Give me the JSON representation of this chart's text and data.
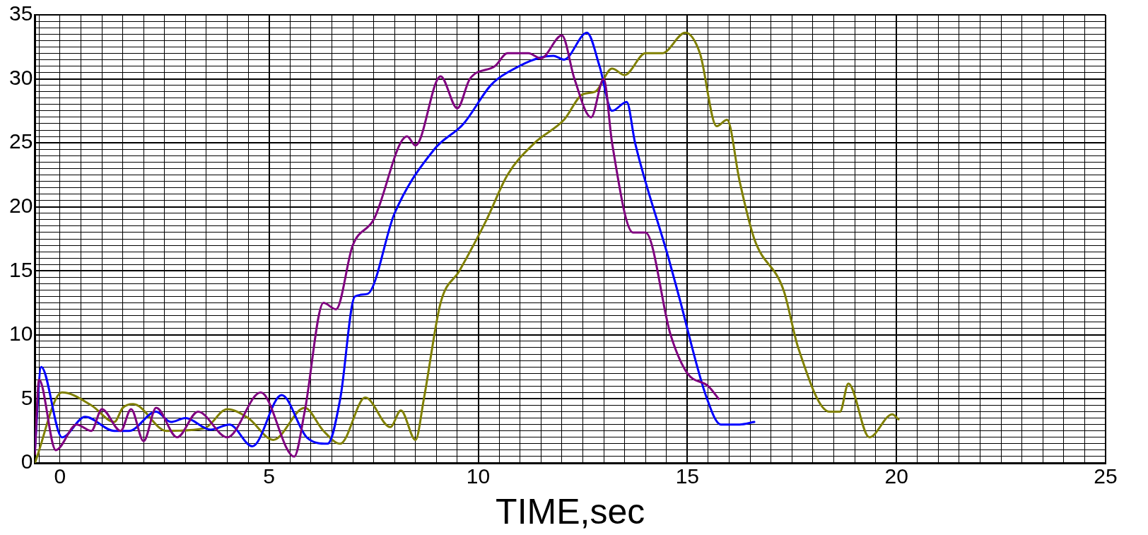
{
  "chart_data": {
    "type": "line",
    "xlabel": "TIME,sec",
    "grid": true,
    "legend": false,
    "marker": "none",
    "line_style": "solid",
    "xlim": [
      -0.6,
      25
    ],
    "ylim": [
      0,
      35
    ],
    "xticks": [
      {
        "value": -0.5,
        "label": null
      },
      0,
      {
        "value": 0.5,
        "label": null
      },
      {
        "value": 1,
        "label": null
      },
      {
        "value": 1.5,
        "label": null
      },
      {
        "value": 2,
        "label": null
      },
      {
        "value": 2.5,
        "label": null
      },
      {
        "value": 3,
        "label": null
      },
      {
        "value": 3.5,
        "label": null
      },
      {
        "value": 4,
        "label": null
      },
      {
        "value": 4.5,
        "label": null
      },
      5,
      {
        "value": 5.5,
        "label": null
      },
      {
        "value": 6,
        "label": null
      },
      {
        "value": 6.5,
        "label": null
      },
      {
        "value": 7,
        "label": null
      },
      {
        "value": 7.5,
        "label": null
      },
      {
        "value": 8,
        "label": null
      },
      {
        "value": 8.5,
        "label": null
      },
      {
        "value": 9,
        "label": null
      },
      {
        "value": 9.5,
        "label": null
      },
      10,
      {
        "value": 10.5,
        "label": null
      },
      {
        "value": 11,
        "label": null
      },
      {
        "value": 11.5,
        "label": null
      },
      {
        "value": 12,
        "label": null
      },
      {
        "value": 12.5,
        "label": null
      },
      {
        "value": 13,
        "label": null
      },
      {
        "value": 13.5,
        "label": null
      },
      {
        "value": 14,
        "label": null
      },
      {
        "value": 14.5,
        "label": null
      },
      15,
      {
        "value": 15.5,
        "label": null
      },
      {
        "value": 16,
        "label": null
      },
      {
        "value": 16.5,
        "label": null
      },
      {
        "value": 17,
        "label": null
      },
      {
        "value": 17.5,
        "label": null
      },
      {
        "value": 18,
        "label": null
      },
      {
        "value": 18.5,
        "label": null
      },
      {
        "value": 19,
        "label": null
      },
      {
        "value": 19.5,
        "label": null
      },
      20,
      {
        "value": 20.5,
        "label": null
      },
      {
        "value": 21,
        "label": null
      },
      {
        "value": 21.5,
        "label": null
      },
      {
        "value": 22,
        "label": null
      },
      {
        "value": 22.5,
        "label": null
      },
      {
        "value": 23,
        "label": null
      },
      {
        "value": 23.5,
        "label": null
      },
      {
        "value": 24,
        "label": null
      },
      {
        "value": 24.5,
        "label": null
      },
      25
    ],
    "yticks": [
      0,
      {
        "value": 0.5,
        "label": null
      },
      {
        "value": 1,
        "label": null
      },
      {
        "value": 1.5,
        "label": null
      },
      {
        "value": 2,
        "label": null
      },
      {
        "value": 2.5,
        "label": null
      },
      {
        "value": 3,
        "label": null
      },
      {
        "value": 3.5,
        "label": null
      },
      {
        "value": 4,
        "label": null
      },
      {
        "value": 4.5,
        "label": null
      },
      5,
      {
        "value": 5.5,
        "label": null
      },
      {
        "value": 6,
        "label": null
      },
      {
        "value": 6.5,
        "label": null
      },
      {
        "value": 7,
        "label": null
      },
      {
        "value": 7.5,
        "label": null
      },
      {
        "value": 8,
        "label": null
      },
      {
        "value": 8.5,
        "label": null
      },
      {
        "value": 9,
        "label": null
      },
      {
        "value": 9.5,
        "label": null
      },
      10,
      {
        "value": 10.5,
        "label": null
      },
      {
        "value": 11,
        "label": null
      },
      {
        "value": 11.5,
        "label": null
      },
      {
        "value": 12,
        "label": null
      },
      {
        "value": 12.5,
        "label": null
      },
      {
        "value": 13,
        "label": null
      },
      {
        "value": 13.5,
        "label": null
      },
      {
        "value": 14,
        "label": null
      },
      {
        "value": 14.5,
        "label": null
      },
      15,
      {
        "value": 15.5,
        "label": null
      },
      {
        "value": 16,
        "label": null
      },
      {
        "value": 16.5,
        "label": null
      },
      {
        "value": 17,
        "label": null
      },
      {
        "value": 17.5,
        "label": null
      },
      {
        "value": 18,
        "label": null
      },
      {
        "value": 18.5,
        "label": null
      },
      {
        "value": 19,
        "label": null
      },
      {
        "value": 19.5,
        "label": null
      },
      20,
      {
        "value": 20.5,
        "label": null
      },
      {
        "value": 21,
        "label": null
      },
      {
        "value": 21.5,
        "label": null
      },
      {
        "value": 22,
        "label": null
      },
      {
        "value": 22.5,
        "label": null
      },
      {
        "value": 23,
        "label": null
      },
      {
        "value": 23.5,
        "label": null
      },
      {
        "value": 24,
        "label": null
      },
      {
        "value": 24.5,
        "label": null
      },
      25,
      {
        "value": 25.5,
        "label": null
      },
      {
        "value": 26,
        "label": null
      },
      {
        "value": 26.5,
        "label": null
      },
      {
        "value": 27,
        "label": null
      },
      {
        "value": 27.5,
        "label": null
      },
      {
        "value": 28,
        "label": null
      },
      {
        "value": 28.5,
        "label": null
      },
      {
        "value": 29,
        "label": null
      },
      {
        "value": 29.5,
        "label": null
      },
      30,
      {
        "value": 30.5,
        "label": null
      },
      {
        "value": 31,
        "label": null
      },
      {
        "value": 31.5,
        "label": null
      },
      {
        "value": 32,
        "label": null
      },
      {
        "value": 32.5,
        "label": null
      },
      {
        "value": 33,
        "label": null
      },
      {
        "value": 33.5,
        "label": null
      },
      {
        "value": 34,
        "label": null
      },
      {
        "value": 34.5,
        "label": null
      },
      35
    ],
    "series": [
      {
        "color": "#800080",
        "x": [
          -0.6,
          -0.5,
          -0.1,
          0.4,
          0.75,
          1.0,
          1.45,
          1.7,
          2.0,
          2.3,
          2.8,
          3.3,
          4.0,
          4.8,
          5.6,
          5.85,
          6.3,
          6.6,
          7.0,
          7.5,
          8.3,
          8.5,
          9.1,
          9.5,
          9.8,
          10.4,
          10.7,
          11.2,
          11.5,
          12.0,
          12.3,
          12.7,
          13.0,
          13.2,
          13.7,
          14.0,
          14.6,
          15.0,
          15.5,
          15.75
        ],
        "values": [
          0.7,
          6.5,
          1,
          3,
          2.5,
          4.2,
          2.5,
          4.2,
          1.7,
          4.3,
          2,
          4,
          2,
          5.5,
          0.5,
          4,
          12.5,
          12,
          17,
          19,
          25.5,
          24.8,
          30.2,
          27.7,
          30,
          31,
          32,
          32,
          31.6,
          33.4,
          30,
          27,
          30,
          25,
          18,
          18,
          10,
          7,
          6,
          5
        ]
      },
      {
        "color": "#0000ff",
        "x": [
          -0.6,
          -0.45,
          0.05,
          0.6,
          1.3,
          1.65,
          2.3,
          2.65,
          3.0,
          3.6,
          4.05,
          4.6,
          5.3,
          5.9,
          6.4,
          6.7,
          7.05,
          7.35,
          8.0,
          8.95,
          9.65,
          10.3,
          10.7,
          11.8,
          12.05,
          12.6,
          12.9,
          13.2,
          13.55,
          13.75,
          14.55,
          14.8,
          15.45,
          15.8,
          16.25,
          16.6
        ],
        "values": [
          1,
          7.5,
          2,
          3.6,
          2.5,
          2.5,
          4,
          3.2,
          3.5,
          2.6,
          3,
          1.3,
          5.3,
          2,
          1.5,
          5,
          13,
          13.2,
          19.5,
          24.5,
          26.5,
          29.5,
          30.5,
          31.8,
          31.5,
          33.6,
          31,
          27.5,
          28.2,
          25,
          16,
          13,
          5.2,
          3,
          3,
          3.2
        ]
      },
      {
        "color": "#808000",
        "x": [
          -0.6,
          0.05,
          0.75,
          1.3,
          1.5,
          1.75,
          2.55,
          3.45,
          4.0,
          4.5,
          5.1,
          5.85,
          6.3,
          6.7,
          7.3,
          7.9,
          8.15,
          8.5,
          8.7,
          9.1,
          9.55,
          10.2,
          10.7,
          11.35,
          12.05,
          12.5,
          12.8,
          13.2,
          13.5,
          14.0,
          14.4,
          14.95,
          15.3,
          15.7,
          15.95,
          16.25,
          16.6,
          17.3,
          17.65,
          18.4,
          18.65,
          18.85,
          19.35,
          19.9,
          20.05
        ],
        "values": [
          0,
          5.5,
          4.5,
          3.2,
          4.3,
          4.6,
          2.5,
          2.7,
          4.2,
          3.5,
          1.8,
          4.3,
          2.5,
          1.5,
          5.1,
          2.8,
          4.1,
          1.8,
          5,
          12.5,
          15,
          19,
          22.5,
          25,
          26.8,
          28.8,
          29,
          30.8,
          30.3,
          32,
          32,
          33.6,
          32,
          26.3,
          26.8,
          22,
          17.5,
          13.5,
          9,
          4,
          4,
          6.2,
          2,
          3.8,
          3.4
        ]
      }
    ]
  }
}
